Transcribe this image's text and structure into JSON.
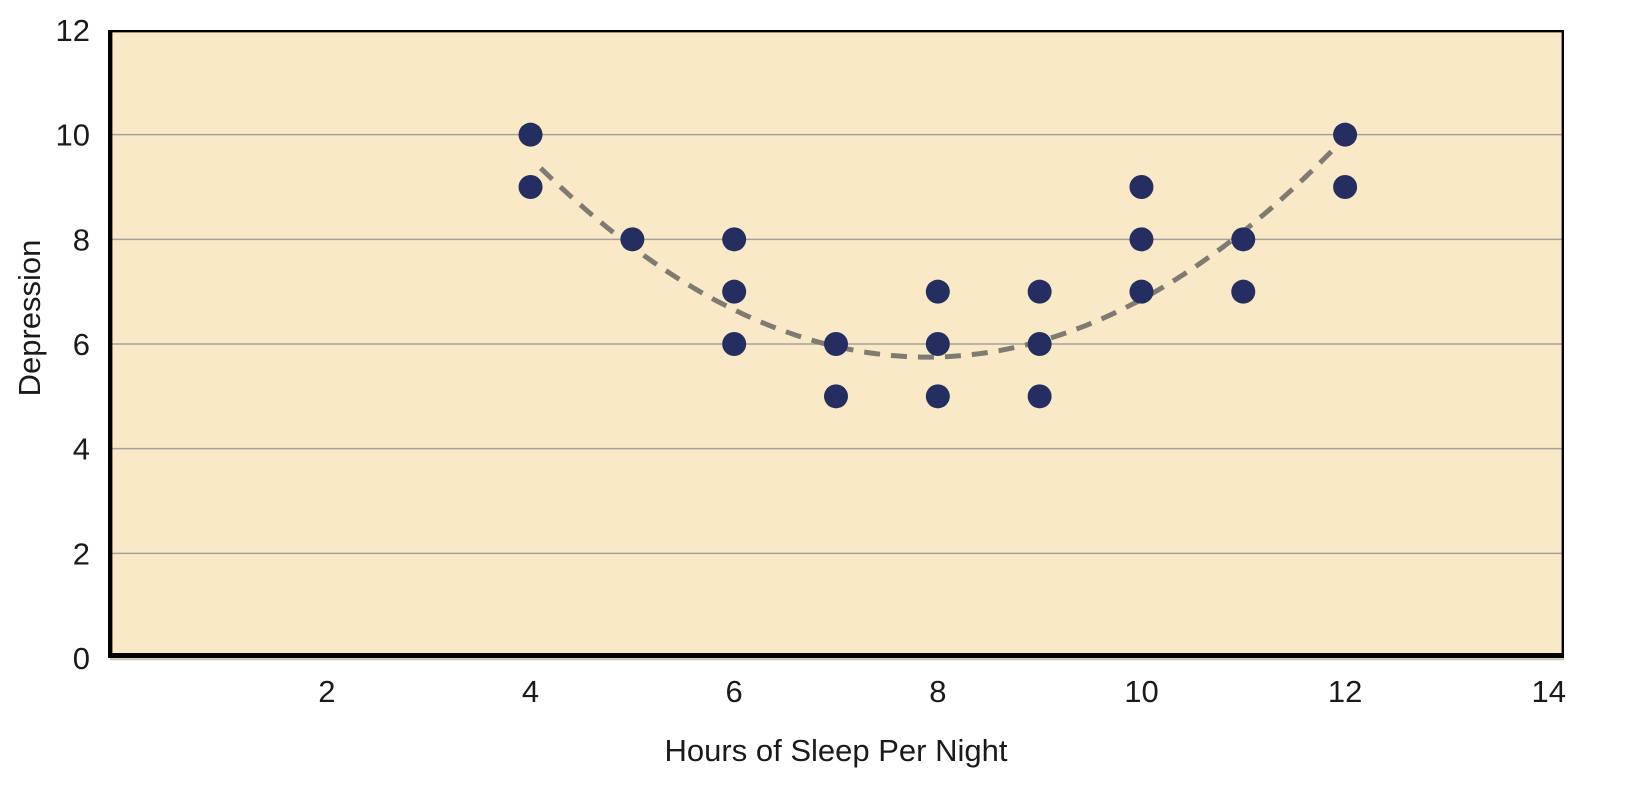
{
  "chart_data": {
    "type": "scatter",
    "title": "",
    "xlabel": "Hours of Sleep Per Night",
    "ylabel": "Depression",
    "xlim": [
      -0.15,
      14.15
    ],
    "ylim": [
      0,
      12
    ],
    "xticks": [
      2,
      4,
      6,
      8,
      10,
      12,
      14
    ],
    "yticks": [
      0,
      2,
      4,
      6,
      8,
      10,
      12
    ],
    "gridlines_y": [
      2,
      4,
      6,
      8,
      10
    ],
    "grid": "horizontal-only",
    "legend": "none",
    "points": [
      {
        "x": 4,
        "y": 10
      },
      {
        "x": 4,
        "y": 9
      },
      {
        "x": 5,
        "y": 8
      },
      {
        "x": 6,
        "y": 8
      },
      {
        "x": 6,
        "y": 7
      },
      {
        "x": 6,
        "y": 6
      },
      {
        "x": 7,
        "y": 6
      },
      {
        "x": 7,
        "y": 5
      },
      {
        "x": 8,
        "y": 7
      },
      {
        "x": 8,
        "y": 6
      },
      {
        "x": 8,
        "y": 5
      },
      {
        "x": 9,
        "y": 7
      },
      {
        "x": 9,
        "y": 6
      },
      {
        "x": 9,
        "y": 5
      },
      {
        "x": 10,
        "y": 9
      },
      {
        "x": 10,
        "y": 8
      },
      {
        "x": 10,
        "y": 7
      },
      {
        "x": 11,
        "y": 8
      },
      {
        "x": 11,
        "y": 7
      },
      {
        "x": 12,
        "y": 10
      },
      {
        "x": 12,
        "y": 9
      }
    ],
    "trendline": {
      "style": "dashed",
      "shape": "parabola",
      "vertex": {
        "x": 7.9,
        "y": 5.75
      },
      "coeff": 0.25,
      "x_start": 4.1,
      "x_end": 12.1
    },
    "colors": {
      "plot_background": "#FAE9C6",
      "point": "#242E60",
      "trendline": "#7D7B72",
      "gridline": "#A3A39E",
      "axis": "#000000",
      "axis_shadow": "#C9C2B2",
      "text": "#1A1A1A"
    }
  }
}
